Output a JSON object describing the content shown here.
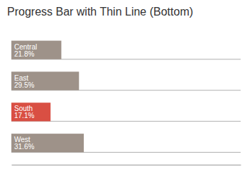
{
  "chart_data": {
    "type": "bar",
    "orientation": "horizontal",
    "title": "Progress Bar with Thin Line (Bottom)",
    "categories": [
      "Central",
      "East",
      "South",
      "West"
    ],
    "values": [
      21.8,
      29.5,
      17.1,
      31.6
    ],
    "value_labels": [
      "21.8%",
      "29.5%",
      "17.1%",
      "31.6%"
    ],
    "colors": [
      "#9e9289",
      "#9e9289",
      "#d94f43",
      "#9e9289"
    ],
    "xlim": [
      0,
      100
    ],
    "data_labels": true,
    "tick_labels": false
  }
}
